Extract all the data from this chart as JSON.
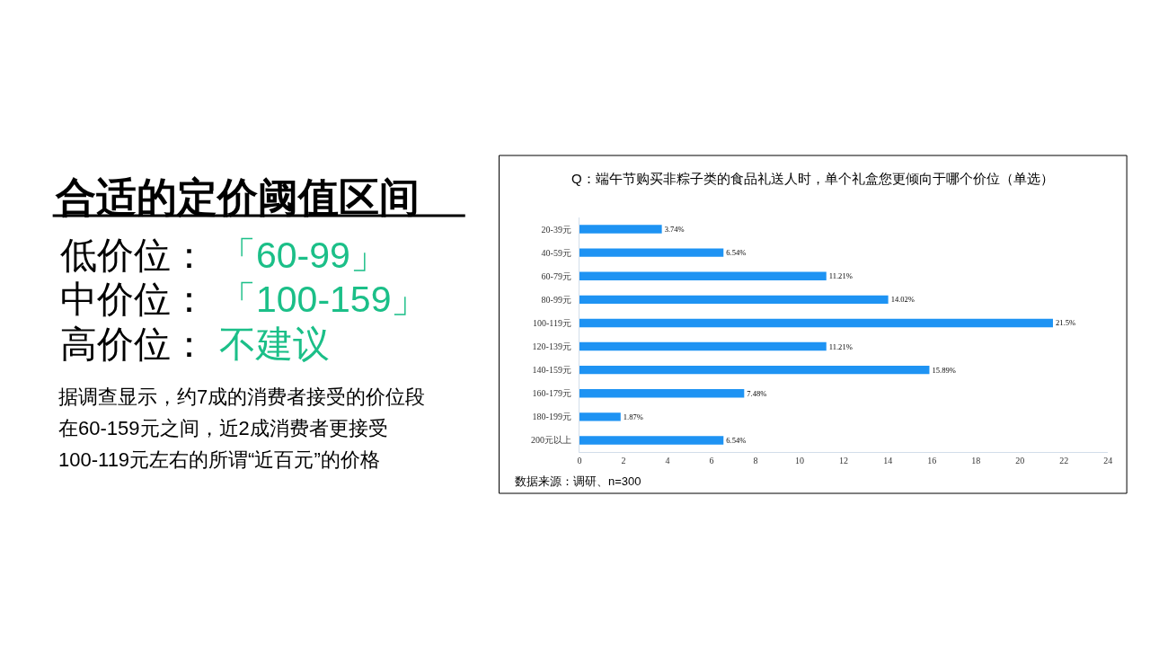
{
  "chart_data": [
    {
      "type": "other",
      "title": "合适的定价阈值区间",
      "annotations": [
        "低价位：",
        "「60-99」",
        "中价位：",
        "「100-159」",
        "高价位：",
        "不建议",
        "据调查显示，约7成的消费者接受的价位段",
        "在60-159元之间，近2成消费者更接受",
        "100-119元左右的所谓“近百元”的价格"
      ],
      "colors": [
        "#000000",
        "#1bbf88",
        "#000000",
        "#1bbf88",
        "#000000",
        "#1bbf88",
        "#000000",
        "#000000",
        "#000000"
      ]
    },
    {
      "type": "bar",
      "orientation": "horizontal",
      "title": "Q：端午节购买非粽子类的食品礼送人时，单个礼盒您更倾向于哪个价位（单选）",
      "categories": [
        "20-39元",
        "40-59元",
        "60-79元",
        "80-99元",
        "100-119元",
        "120-139元",
        "140-159元",
        "160-179元",
        "180-199元",
        "200元以上"
      ],
      "values": [
        3.74,
        6.54,
        11.21,
        14.02,
        21.5,
        11.21,
        15.89,
        7.48,
        1.87,
        6.54
      ],
      "value_labels": [
        "3.74%",
        "6.54%",
        "11.21%",
        "14.02%",
        "21.5%",
        "11.21%",
        "15.89%",
        "7.48%",
        "1.87%",
        "6.54%"
      ],
      "color": "#1e93f3",
      "xlim": [
        0,
        24
      ],
      "xticks": [
        0,
        2,
        4,
        6,
        8,
        10,
        12,
        14,
        16,
        18,
        20,
        22,
        24
      ],
      "annotations": [
        "数据来源：调研、n=300"
      ]
    }
  ]
}
